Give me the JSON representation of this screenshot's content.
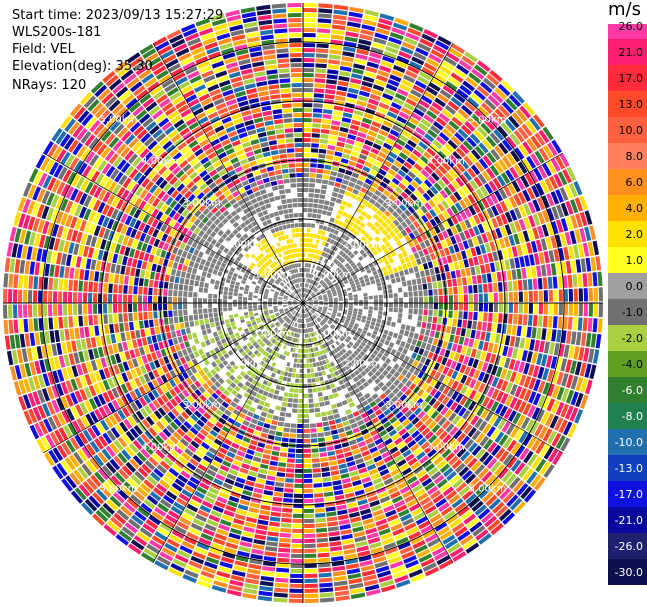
{
  "info": {
    "start_time": "Start time: 2023/09/13 15:27:29",
    "instrument": "WLS200s-181",
    "field": "Field: VEL",
    "elevation": "Elevation(deg): 35.30",
    "nrays": "NRays: 120"
  },
  "colorbar": {
    "unit": "m/s",
    "ticks": [
      "26.0",
      "21.0",
      "17.0",
      "13.0",
      "10.0",
      "8.0",
      "6.0",
      "4.0",
      "2.0",
      "1.0",
      "0.0",
      "-1.0",
      "-2.0",
      "-4.0",
      "-6.0",
      "-8.0",
      "-10.0",
      "-13.0",
      "-17.0",
      "-21.0",
      "-26.0",
      "-30.0"
    ],
    "colors": [
      "#ff3aa8",
      "#ff1f6e",
      "#ff2a3a",
      "#ff4a2a",
      "#ff6040",
      "#ff8060",
      "#ff9020",
      "#ffb000",
      "#ffe000",
      "#ffff20",
      "#a0a0a0",
      "#707070",
      "#a8d040",
      "#60a020",
      "#308030",
      "#208050",
      "#2070b0",
      "#1040c0",
      "#1010e0",
      "#0808a0",
      "#202070",
      "#101050"
    ]
  },
  "ppi": {
    "range_labels": [
      "1.00km",
      "2.00km",
      "3.00km",
      "4.00km",
      "5.00km"
    ],
    "palette": [
      "#ff3aa8",
      "#ff1f6e",
      "#ff2a3a",
      "#ff6040",
      "#ff9020",
      "#ffe000",
      "#ffff20",
      "#a8d040",
      "#308030",
      "#2070b0",
      "#1010e0",
      "#0808a0",
      "#101050",
      "#707070",
      "#ffb000",
      "#ff4a2a"
    ],
    "gray": "#808080",
    "yellow": "#ffe000",
    "green": "#a8d040"
  }
}
